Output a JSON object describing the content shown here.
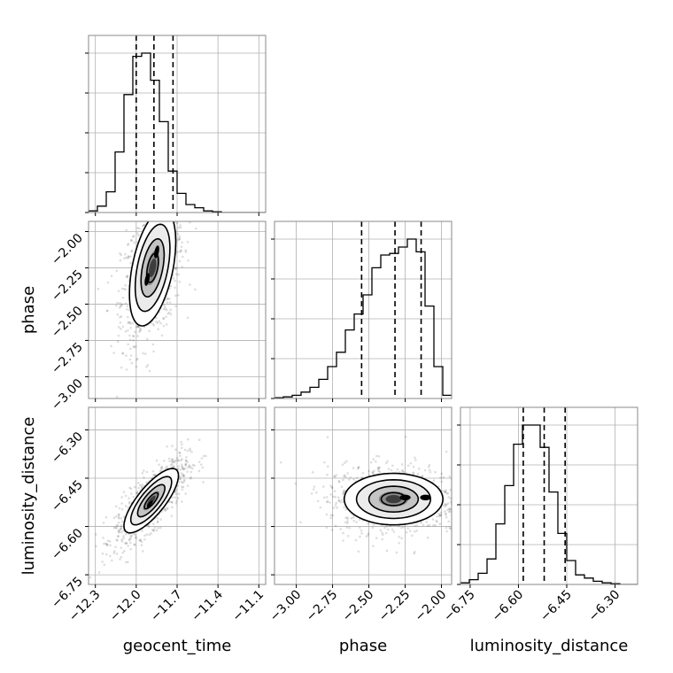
{
  "chart_data": {
    "type": "corner",
    "parameters": [
      "geocent_time",
      "phase",
      "luminosity_distance"
    ],
    "ranges": {
      "geocent_time": [
        -12.35,
        -11.05
      ],
      "phase": [
        -3.15,
        -1.93
      ],
      "luminosity_distance": [
        -6.78,
        -6.23
      ]
    },
    "ticks": {
      "geocent_time": [
        "−12.3",
        "−12.0",
        "−11.7",
        "−11.4",
        "−11.1"
      ],
      "phase": [
        "−3.00",
        "−2.75",
        "−2.50",
        "−2.25",
        "−2.00"
      ],
      "luminosity_distance": [
        "−6.75",
        "−6.60",
        "−6.45",
        "−6.30"
      ]
    },
    "tick_values": {
      "geocent_time": [
        -12.3,
        -12.0,
        -11.7,
        -11.4,
        -11.1
      ],
      "phase": [
        -3.0,
        -2.75,
        -2.5,
        -2.25,
        -2.0
      ],
      "luminosity_distance": [
        -6.75,
        -6.6,
        -6.45,
        -6.3
      ]
    },
    "histograms": {
      "geocent_time": {
        "edges": [
          -12.35,
          -12.285,
          -12.22,
          -12.155,
          -12.09,
          -12.025,
          -11.96,
          -11.895,
          -11.83,
          -11.765,
          -11.7,
          -11.635,
          -11.57,
          -11.505,
          -11.44,
          -11.375,
          -11.31,
          -11.245,
          -11.18,
          -11.115,
          -11.05
        ],
        "counts": [
          0.01,
          0.04,
          0.13,
          0.38,
          0.74,
          0.98,
          1.0,
          0.83,
          0.57,
          0.26,
          0.12,
          0.05,
          0.03,
          0.01,
          0.005,
          0.0,
          0.0,
          0.0,
          0.0,
          0.0
        ],
        "quantiles": [
          -12.0,
          -11.87,
          -11.73
        ]
      },
      "phase": {
        "edges": [
          -3.15,
          -3.089,
          -3.028,
          -2.967,
          -2.906,
          -2.845,
          -2.784,
          -2.723,
          -2.662,
          -2.601,
          -2.54,
          -2.479,
          -2.418,
          -2.357,
          -2.296,
          -2.235,
          -2.174,
          -2.113,
          -2.052,
          -1.991,
          -1.93
        ],
        "counts": [
          0.005,
          0.01,
          0.02,
          0.04,
          0.07,
          0.12,
          0.2,
          0.29,
          0.43,
          0.53,
          0.65,
          0.82,
          0.9,
          0.91,
          0.95,
          1.0,
          0.92,
          0.58,
          0.2,
          0.02
        ],
        "quantiles": [
          -2.55,
          -2.32,
          -2.14
        ]
      },
      "luminosity_distance": {
        "edges": [
          -6.78,
          -6.7525,
          -6.725,
          -6.6975,
          -6.67,
          -6.6425,
          -6.615,
          -6.5875,
          -6.56,
          -6.5325,
          -6.505,
          -6.4775,
          -6.45,
          -6.4225,
          -6.395,
          -6.3675,
          -6.34,
          -6.3125,
          -6.285,
          -6.2575,
          -6.23
        ],
        "counts": [
          0.01,
          0.03,
          0.07,
          0.16,
          0.38,
          0.62,
          0.88,
          1.0,
          1.0,
          0.86,
          0.58,
          0.32,
          0.15,
          0.06,
          0.04,
          0.02,
          0.01,
          0.005,
          0.0,
          0.0
        ],
        "quantiles": [
          -6.585,
          -6.52,
          -6.455
        ]
      }
    },
    "contours_2d": [
      {
        "x": "geocent_time",
        "y": "phase",
        "center": [
          -11.88,
          -2.25
        ],
        "sigma": [
          0.085,
          0.2
        ],
        "correlation": 0.45,
        "density_peaks": [
          [
            -11.85,
            -2.14
          ],
          [
            -11.92,
            -2.33
          ]
        ],
        "levels": [
          0.5,
          1.0,
          1.5,
          2.0
        ]
      },
      {
        "x": "geocent_time",
        "y": "luminosity_distance",
        "center": [
          -11.89,
          -6.52
        ],
        "sigma": [
          0.1,
          0.05
        ],
        "correlation": 0.78,
        "density_peaks": [
          [
            -11.9,
            -6.53
          ]
        ],
        "levels": [
          0.5,
          1.0,
          1.5,
          2.0
        ]
      },
      {
        "x": "phase",
        "y": "luminosity_distance",
        "center": [
          -2.33,
          -6.515
        ],
        "sigma": [
          0.17,
          0.04
        ],
        "correlation": 0.0,
        "density_peaks": [
          [
            -2.25,
            -6.51
          ],
          [
            -2.11,
            -6.51
          ]
        ],
        "levels": [
          0.5,
          1.0,
          1.5,
          2.0
        ]
      }
    ],
    "grid": true,
    "labels": {
      "x_geocent_time": "geocent_time",
      "x_phase": "phase",
      "x_luminosity_distance": "luminosity_distance",
      "y_phase": "phase",
      "y_luminosity_distance": "luminosity_distance"
    }
  }
}
